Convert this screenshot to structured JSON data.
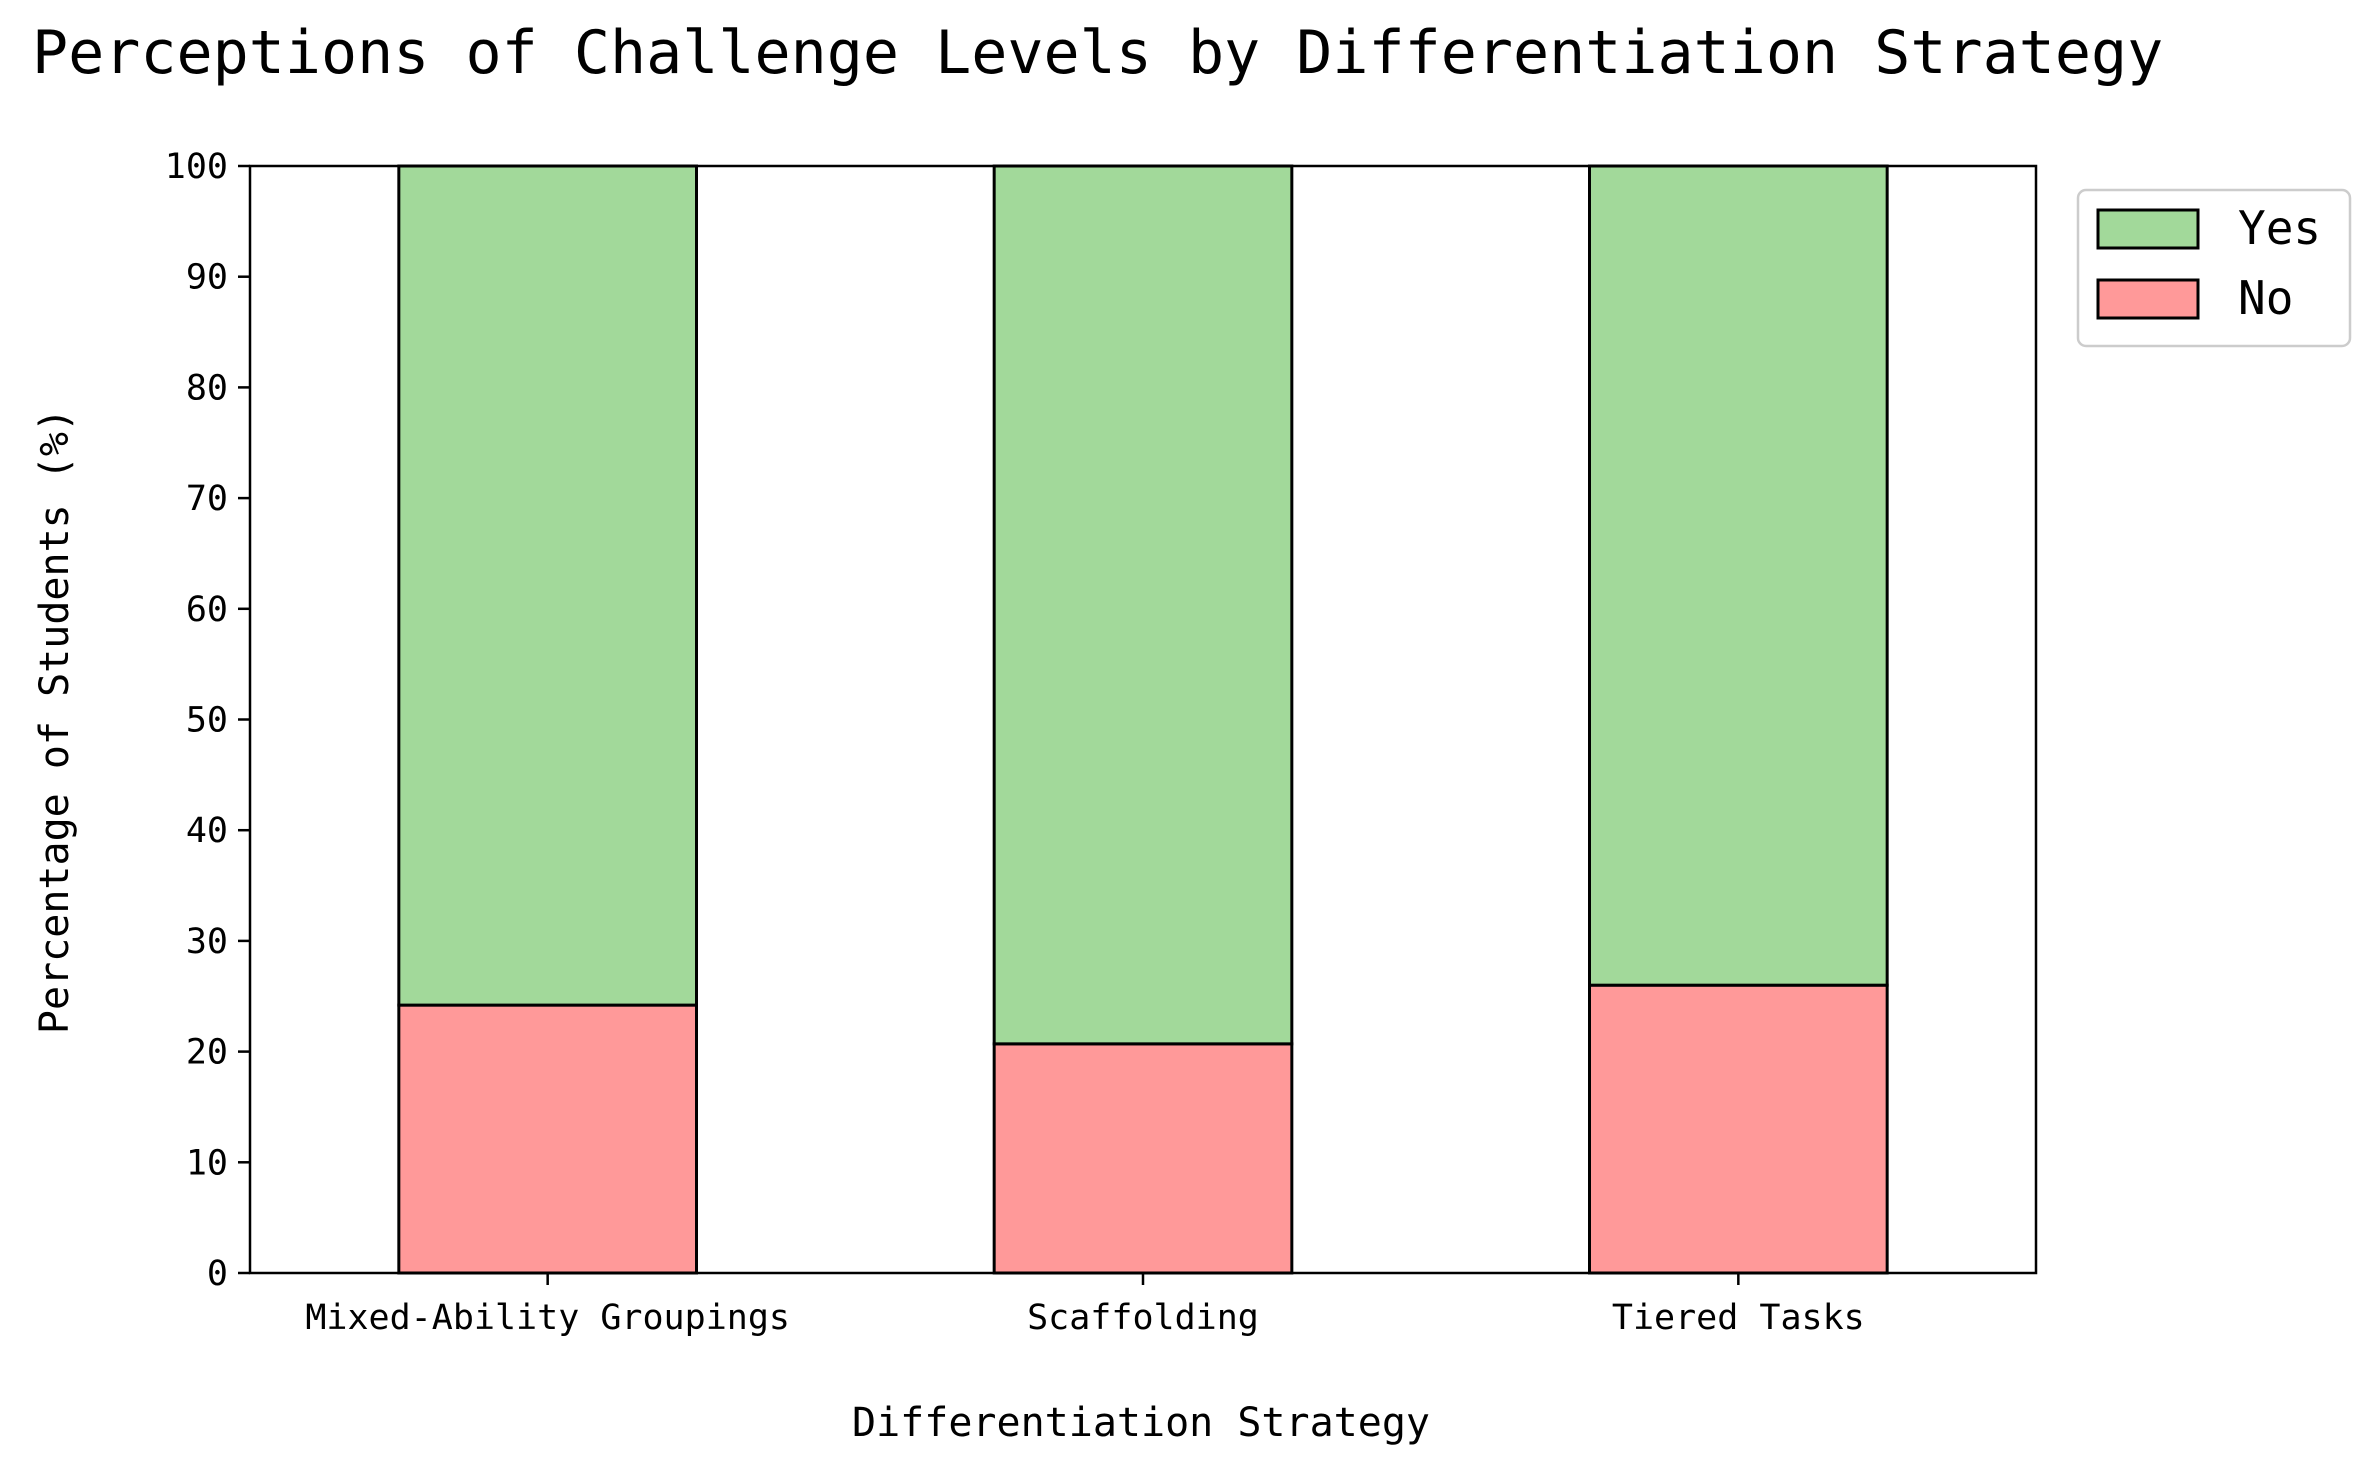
{
  "chart_data": {
    "type": "bar",
    "stacked": true,
    "title": "Perceptions of Challenge Levels by Differentiation Strategy",
    "xlabel": "Differentiation Strategy",
    "ylabel": "Percentage of Students (%)",
    "ylim": [
      0,
      100
    ],
    "yticks": [
      "0",
      "10",
      "20",
      "30",
      "40",
      "50",
      "60",
      "70",
      "80",
      "90",
      "100"
    ],
    "categories": [
      "Mixed-Ability Groupings",
      "Scaffolding",
      "Tiered Tasks"
    ],
    "series": [
      {
        "name": "No",
        "values": [
          24.2,
          20.7,
          26.0
        ],
        "color": "#ff9999"
      },
      {
        "name": "Yes",
        "values": [
          75.8,
          79.3,
          74.0
        ],
        "color": "#a2d99a"
      }
    ],
    "legend": {
      "position": "top-right-outside",
      "order": [
        "Yes",
        "No"
      ]
    },
    "grid": false
  }
}
